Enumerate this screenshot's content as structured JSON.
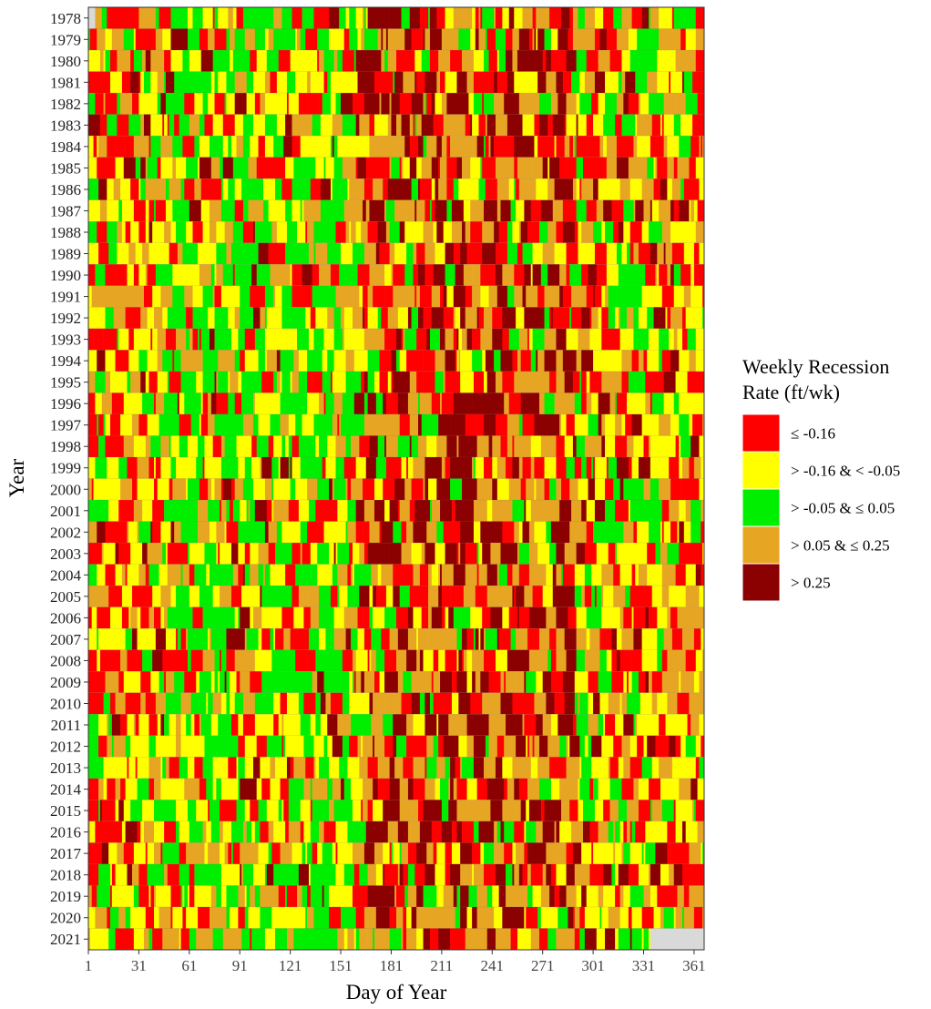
{
  "chart_data": {
    "type": "heatmap",
    "xlabel": "Day of Year",
    "ylabel": "Year",
    "x_ticks": [
      1,
      31,
      61,
      91,
      121,
      151,
      181,
      211,
      241,
      271,
      301,
      331,
      361
    ],
    "x_range": [
      1,
      366
    ],
    "years": [
      "1978",
      "1979",
      "1980",
      "1981",
      "1982",
      "1983",
      "1984",
      "1985",
      "1986",
      "1987",
      "1988",
      "1989",
      "1990",
      "1991",
      "1992",
      "1993",
      "1994",
      "1995",
      "1996",
      "1997",
      "1998",
      "1999",
      "2000",
      "2001",
      "2002",
      "2003",
      "2004",
      "2005",
      "2006",
      "2007",
      "2008",
      "2009",
      "2010",
      "2011",
      "2012",
      "2013",
      "2014",
      "2015",
      "2016",
      "2017",
      "2018",
      "2019",
      "2020",
      "2021"
    ],
    "legend": {
      "title_line1": "Weekly Recession",
      "title_line2": "Rate (ft/wk)",
      "placement": "right",
      "classes": [
        {
          "label": "≤ -0.16",
          "color": "#ff0000"
        },
        {
          "label": "> -0.16 & < -0.05",
          "color": "#ffff00"
        },
        {
          "label": "> -0.05 & ≤ 0.05",
          "color": "#00ee00"
        },
        {
          "label": "> 0.05 & ≤ 0.25",
          "color": "#e6a623"
        },
        {
          "label": "> 0.25",
          "color": "#8b0000"
        }
      ]
    },
    "missing_color": "#d9d9d9",
    "missing_days": {
      "1978": [
        [
          1,
          4
        ]
      ],
      "2021": [
        [
          335,
          366
        ]
      ]
    },
    "segment_days": 7,
    "seasonal_class_weights": {
      "winter": [
        0.3,
        0.3,
        0.12,
        0.22,
        0.06
      ],
      "spring": [
        0.15,
        0.25,
        0.4,
        0.15,
        0.05
      ],
      "summer": [
        0.2,
        0.12,
        0.1,
        0.33,
        0.25
      ],
      "fall": [
        0.25,
        0.3,
        0.2,
        0.18,
        0.07
      ]
    }
  }
}
